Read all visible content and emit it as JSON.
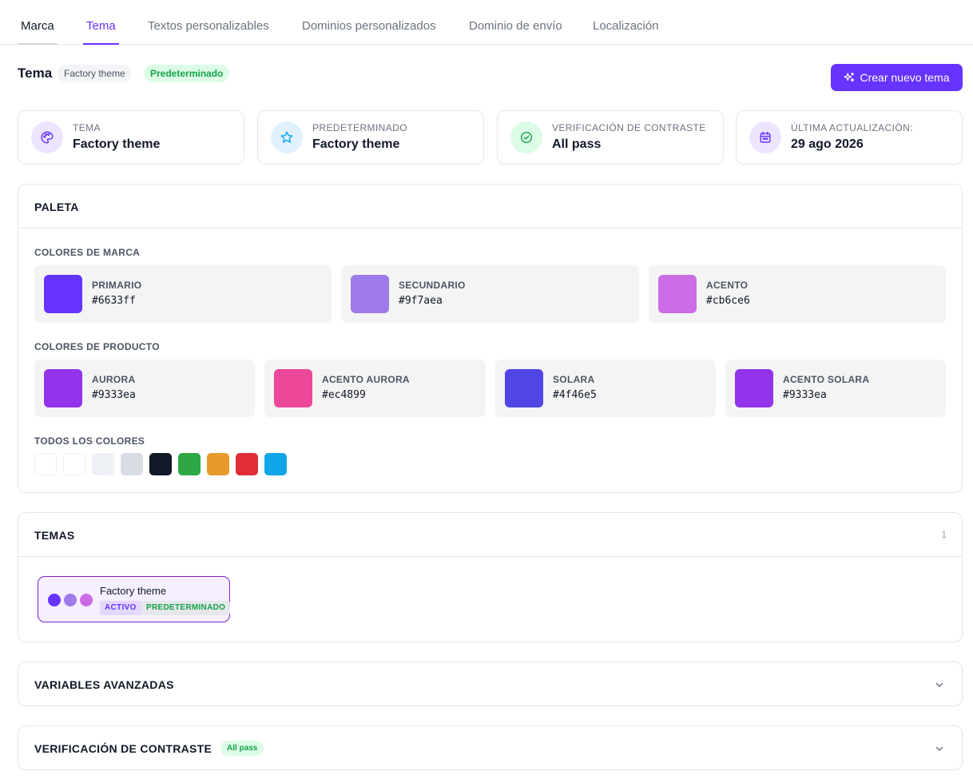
{
  "tabs": [
    {
      "label": "Marca"
    },
    {
      "label": "Tema"
    },
    {
      "label": "Textos personalizables"
    },
    {
      "label": "Dominios personalizados"
    },
    {
      "label": "Dominio de envío"
    },
    {
      "label": "Localización"
    }
  ],
  "header": {
    "title": "Tema",
    "theme_pill": "Factory theme",
    "default_pill": "Predeterminado",
    "create_button": "Crear nuevo tema"
  },
  "stats": [
    {
      "label": "TEMA",
      "value": "Factory theme",
      "icon": "palette-icon"
    },
    {
      "label": "PREDETERMINADO",
      "value": "Factory theme",
      "icon": "star-icon"
    },
    {
      "label": "VERIFICACIÓN DE CONTRASTE",
      "value": "All pass",
      "icon": "check-circle-icon"
    },
    {
      "label": "ÚLTIMA ACTUALIZACIÓN:",
      "value": "29 ago 2026",
      "icon": "calendar-icon"
    }
  ],
  "palette": {
    "title": "PALETA",
    "brand_label": "COLORES DE MARCA",
    "brand": [
      {
        "name": "PRIMARIO",
        "hex": "#6633ff"
      },
      {
        "name": "SECUNDARIO",
        "hex": "#9f7aea"
      },
      {
        "name": "ACENTO",
        "hex": "#cb6ce6"
      }
    ],
    "product_label": "COLORES DE PRODUCTO",
    "product": [
      {
        "name": "AURORA",
        "hex": "#9333ea"
      },
      {
        "name": "ACENTO AURORA",
        "hex": "#ec4899"
      },
      {
        "name": "SOLARA",
        "hex": "#4f46e5"
      },
      {
        "name": "ACENTO SOLARA",
        "hex": "#9333ea"
      }
    ],
    "all_label": "TODOS LOS COLORES",
    "all_colors": [
      "#ffffff",
      "#ffffff",
      "#eef2f7",
      "#d8dde4",
      "#111827",
      "#2ea844",
      "#e89a2c",
      "#e02d37",
      "#0ea5e9"
    ]
  },
  "themes": {
    "title": "TEMAS",
    "count": "1",
    "items": [
      {
        "name": "Factory theme",
        "colors": [
          "#6633ff",
          "#9f7aea",
          "#cb6ce6"
        ],
        "tag_active": "ACTIVO",
        "tag_default": "PREDETERMINADO"
      }
    ]
  },
  "advanced": {
    "title": "VARIABLES AVANZADAS"
  },
  "contrast": {
    "title": "VERIFICACIÓN DE CONTRASTE",
    "badge": "All pass"
  },
  "colors": {
    "accent": "#6633ff",
    "success": "#16a34a"
  }
}
